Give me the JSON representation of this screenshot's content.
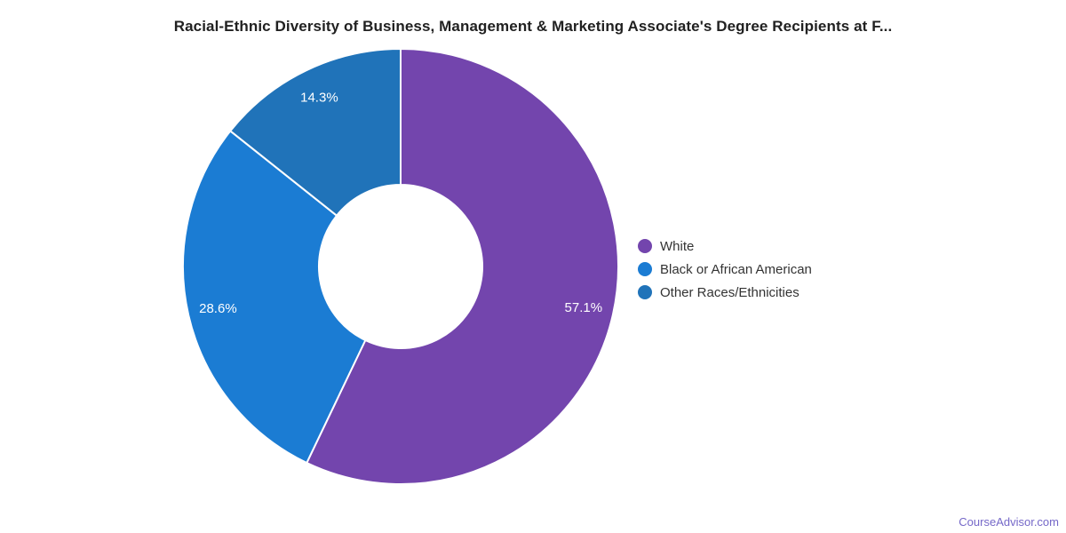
{
  "title": "Racial-Ethnic Diversity of Business, Management & Marketing Associate's Degree Recipients at F...",
  "chart_data": {
    "type": "pie",
    "subtype": "donut",
    "categories": [
      "White",
      "Black or African American",
      "Other Races/Ethnicities"
    ],
    "values": [
      57.1,
      28.6,
      14.3
    ],
    "labels": [
      "57.1%",
      "28.6%",
      "14.3%"
    ],
    "colors": [
      "#7345AD",
      "#1B7CD3",
      "#2073B9"
    ],
    "start_angle_deg": 0,
    "direction": "clockwise",
    "legend_position": "right",
    "label_text_color": "#FFFFFF"
  },
  "legend": {
    "items": [
      {
        "label": "White",
        "color": "#7345AD"
      },
      {
        "label": "Black or African American",
        "color": "#1B7CD3"
      },
      {
        "label": "Other Races/Ethnicities",
        "color": "#2073B9"
      }
    ]
  },
  "footer": {
    "credit": "CourseAdvisor.com",
    "color": "#7568C8"
  }
}
